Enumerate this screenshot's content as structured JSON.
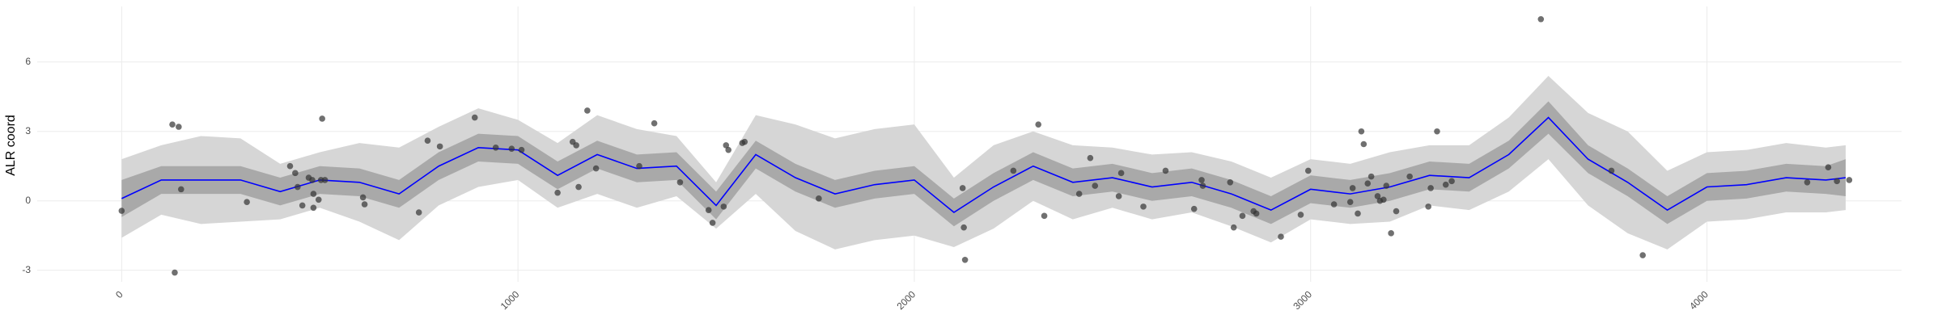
{
  "chart_data": {
    "type": "smooth",
    "y_label": "ALR coord",
    "xlim": [
      -213,
      4491
    ],
    "ylim": [
      -3.5,
      8.4
    ],
    "xticks": [
      0,
      1000,
      2000,
      3000,
      4000
    ],
    "yticks": [
      -3,
      0,
      3,
      6
    ],
    "grid": true,
    "x": [
      0,
      100,
      200,
      300,
      400,
      500,
      600,
      700,
      800,
      900,
      1000,
      1100,
      1200,
      1300,
      1400,
      1500,
      1600,
      1700,
      1800,
      1900,
      2000,
      2100,
      2200,
      2300,
      2400,
      2500,
      2600,
      2700,
      2800,
      2900,
      3000,
      3100,
      3200,
      3300,
      3400,
      3500,
      3600,
      3700,
      3800,
      3900,
      4000,
      4100,
      4200,
      4300,
      4350
    ],
    "line": {
      "color": "#0000ff",
      "values": [
        0.1,
        0.9,
        0.9,
        0.9,
        0.4,
        0.9,
        0.8,
        0.3,
        1.5,
        2.3,
        2.2,
        1.1,
        2.0,
        1.4,
        1.5,
        -0.2,
        2.0,
        1.0,
        0.3,
        0.7,
        0.9,
        -0.5,
        0.6,
        1.5,
        0.8,
        1.0,
        0.6,
        0.8,
        0.3,
        -0.4,
        0.5,
        0.3,
        0.6,
        1.1,
        1.0,
        2.0,
        3.6,
        1.8,
        0.8,
        -0.4,
        0.6,
        0.7,
        1.0,
        0.9,
        1.0
      ]
    },
    "inner_band": {
      "color": "#a9a9a9",
      "lower": [
        -0.7,
        0.3,
        0.3,
        0.3,
        -0.2,
        0.3,
        0.2,
        -0.3,
        0.9,
        1.7,
        1.6,
        0.5,
        1.4,
        0.8,
        0.9,
        -0.8,
        1.4,
        0.4,
        -0.3,
        0.1,
        0.3,
        -1.1,
        0,
        0.9,
        0.2,
        0.4,
        0,
        0.2,
        -0.3,
        -1.0,
        -0.1,
        -0.3,
        0,
        0.5,
        0.4,
        1.4,
        2.9,
        1.2,
        0.2,
        -1.0,
        0,
        0.1,
        0.4,
        0.3,
        0.2
      ],
      "upper": [
        0.9,
        1.5,
        1.5,
        1.5,
        1.0,
        1.5,
        1.4,
        0.9,
        2.1,
        2.9,
        2.8,
        1.7,
        2.6,
        2.0,
        2.1,
        0.4,
        2.6,
        1.6,
        0.9,
        1.3,
        1.5,
        0.1,
        1.2,
        2.1,
        1.4,
        1.6,
        1.2,
        1.4,
        0.9,
        0.2,
        1.1,
        0.9,
        1.2,
        1.7,
        1.6,
        2.6,
        4.3,
        2.4,
        1.4,
        0.2,
        1.2,
        1.3,
        1.6,
        1.5,
        1.8
      ]
    },
    "outer_band": {
      "color": "#d6d6d6",
      "lower": [
        -1.6,
        -0.6,
        -1.0,
        -0.9,
        -0.8,
        -0.3,
        -0.9,
        -1.7,
        -0.2,
        0.6,
        0.9,
        -0.3,
        0.3,
        -0.3,
        0.2,
        -1.2,
        0.3,
        -1.3,
        -2.1,
        -1.7,
        -1.5,
        -2.0,
        -1.2,
        0,
        -0.8,
        -0.3,
        -0.8,
        -0.5,
        -1.1,
        -1.8,
        -0.8,
        -1.0,
        -0.9,
        -0.2,
        -0.4,
        0.4,
        1.8,
        -0.2,
        -1.4,
        -2.1,
        -0.9,
        -0.8,
        -0.5,
        -0.5,
        -0.4
      ],
      "upper": [
        1.8,
        2.4,
        2.8,
        2.7,
        1.6,
        2.1,
        2.5,
        2.3,
        3.2,
        4.0,
        3.5,
        2.5,
        3.7,
        3.1,
        2.8,
        0.8,
        3.7,
        3.3,
        2.7,
        3.1,
        3.3,
        1.0,
        2.4,
        3.0,
        2.4,
        2.3,
        2.0,
        2.1,
        1.7,
        1.0,
        1.8,
        1.6,
        2.1,
        2.4,
        2.4,
        3.6,
        5.4,
        3.8,
        3.0,
        1.3,
        2.1,
        2.2,
        2.5,
        2.3,
        2.4
      ]
    },
    "points": {
      "color": "#333333",
      "x": [
        0,
        128,
        134,
        144,
        150,
        316,
        425,
        438,
        444,
        456,
        472,
        481,
        484,
        484,
        497,
        503,
        506,
        513,
        609,
        613,
        750,
        772,
        803,
        891,
        944,
        984,
        1009,
        1100,
        1138,
        1147,
        1153,
        1175,
        1197,
        1306,
        1344,
        1409,
        1481,
        1491,
        1519,
        1525,
        1531,
        1566,
        1572,
        1759,
        2122,
        2125,
        2128,
        2250,
        2313,
        2328,
        2416,
        2444,
        2456,
        2516,
        2522,
        2578,
        2634,
        2706,
        2725,
        2728,
        2797,
        2806,
        2828,
        2856,
        2863,
        2925,
        2975,
        2994,
        3059,
        3100,
        3106,
        3119,
        3128,
        3134,
        3144,
        3153,
        3169,
        3175,
        3184,
        3191,
        3203,
        3216,
        3250,
        3297,
        3303,
        3319,
        3341,
        3356,
        3581,
        3759,
        3838,
        4253,
        4306,
        4328,
        4359
      ],
      "y": [
        -0.43,
        3.3,
        -3.1,
        3.2,
        0.5,
        -0.05,
        1.5,
        1.2,
        0.6,
        -0.2,
        1.0,
        0.9,
        0.3,
        -0.3,
        0.05,
        0.9,
        3.55,
        0.9,
        0.15,
        -0.15,
        -0.5,
        2.6,
        2.35,
        3.6,
        2.3,
        2.25,
        2.2,
        0.35,
        2.55,
        2.4,
        0.6,
        3.9,
        1.4,
        1.5,
        3.35,
        0.8,
        -0.4,
        -0.95,
        -0.25,
        2.4,
        2.2,
        2.5,
        2.55,
        0.1,
        0.55,
        -1.15,
        -2.55,
        1.3,
        3.3,
        -0.65,
        0.3,
        1.85,
        0.65,
        0.2,
        1.2,
        -0.25,
        1.3,
        -0.35,
        0.9,
        0.65,
        0.8,
        -1.15,
        -0.65,
        -0.45,
        -0.55,
        -1.55,
        -0.6,
        1.3,
        -0.15,
        -0.05,
        0.55,
        -0.55,
        3.0,
        2.45,
        0.75,
        1.05,
        0.2,
        0,
        0.05,
        0.65,
        -1.4,
        -0.45,
        1.05,
        -0.25,
        0.55,
        3.0,
        0.7,
        0.85,
        7.85,
        1.3,
        -2.35,
        0.8,
        1.45,
        0.85,
        0.9
      ]
    }
  }
}
